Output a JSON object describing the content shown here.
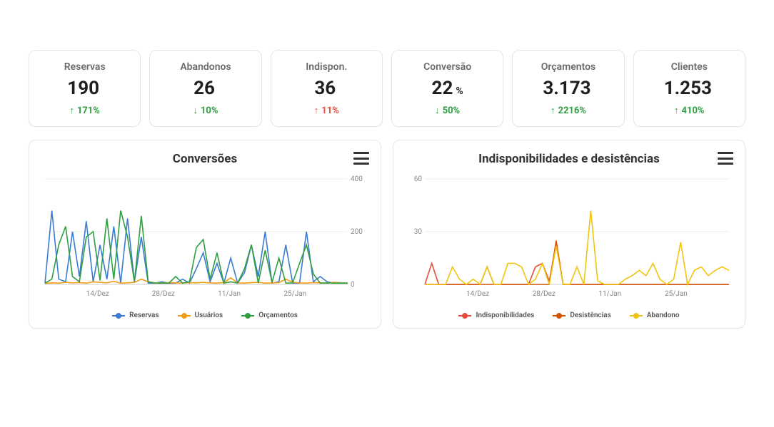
{
  "kpis": [
    {
      "title": "Reservas",
      "value": "190",
      "suffix": "",
      "delta": "171%",
      "direction": "up",
      "deltaColor": "green"
    },
    {
      "title": "Abandonos",
      "value": "26",
      "suffix": "",
      "delta": "10%",
      "direction": "down",
      "deltaColor": "green"
    },
    {
      "title": "Indispon.",
      "value": "36",
      "suffix": "",
      "delta": "11%",
      "direction": "up",
      "deltaColor": "red"
    },
    {
      "title": "Conversão",
      "value": "22",
      "suffix": "%",
      "delta": "50%",
      "direction": "down",
      "deltaColor": "green"
    },
    {
      "title": "Orçamentos",
      "value": "3.173",
      "suffix": "",
      "delta": "2216%",
      "direction": "up",
      "deltaColor": "green"
    },
    {
      "title": "Clientes",
      "value": "1.253",
      "suffix": "",
      "delta": "410%",
      "direction": "up",
      "deltaColor": "green"
    }
  ],
  "charts": {
    "left": {
      "title": "Conversões",
      "type": "line",
      "x_labels": [
        "14/Dez",
        "28/Dez",
        "11/Jan",
        "25/Jan"
      ],
      "y_ticks": [
        0,
        200,
        400
      ],
      "ylim": [
        0,
        400
      ],
      "background_color": "#ffffff",
      "grid_color": "#eeeeee",
      "axis_font_size": 10,
      "y_axis_side": "right",
      "series": [
        {
          "name": "Reservas",
          "color": "#3a7bd5",
          "values": [
            5,
            280,
            20,
            10,
            200,
            30,
            240,
            10,
            150,
            20,
            220,
            5,
            250,
            10,
            180,
            5,
            5,
            10,
            5,
            5,
            20,
            5,
            60,
            120,
            10,
            80,
            5,
            100,
            5,
            45,
            150,
            30,
            200,
            5,
            10,
            150,
            5,
            5,
            200,
            10,
            30,
            10,
            5,
            5,
            5
          ]
        },
        {
          "name": "Usuários",
          "color": "#f39c12",
          "values": [
            4,
            6,
            5,
            8,
            6,
            7,
            5,
            10,
            8,
            6,
            12,
            5,
            6,
            8,
            20,
            10,
            6,
            5,
            7,
            6,
            5,
            7,
            6,
            8,
            6,
            5,
            7,
            25,
            6,
            5,
            7,
            8,
            5,
            6,
            7,
            20,
            8,
            6,
            5,
            7,
            6,
            5,
            8,
            6,
            5
          ]
        },
        {
          "name": "Orçamentos",
          "color": "#2e9e3f",
          "values": [
            5,
            20,
            150,
            220,
            30,
            10,
            180,
            200,
            15,
            250,
            20,
            280,
            180,
            10,
            260,
            10,
            5,
            5,
            5,
            30,
            5,
            10,
            140,
            170,
            20,
            120,
            5,
            10,
            5,
            60,
            150,
            5,
            130,
            8,
            100,
            5,
            6,
            80,
            150,
            40,
            5,
            6,
            5,
            5,
            5
          ]
        }
      ],
      "legend": [
        "Reservas",
        "Usuários",
        "Orçamentos"
      ]
    },
    "right": {
      "title": "Indisponibilidades e desistências",
      "type": "line",
      "x_labels": [
        "14/Dez",
        "28/Dez",
        "11/Jan",
        "25/Jan"
      ],
      "y_ticks": [
        30,
        60
      ],
      "ylim": [
        0,
        60
      ],
      "background_color": "#ffffff",
      "grid_color": "#eeeeee",
      "axis_font_size": 10,
      "y_axis_side": "left",
      "series": [
        {
          "name": "Indisponibilidades",
          "color": "#e74c3c",
          "values": [
            0,
            12,
            0,
            0,
            0,
            0,
            0,
            0,
            0,
            10,
            0,
            0,
            0,
            0,
            0,
            0,
            10,
            12,
            2,
            23,
            0,
            0,
            0,
            0,
            0,
            0,
            0,
            0,
            0,
            0,
            0,
            0,
            0,
            0,
            0,
            0,
            0,
            0,
            0,
            0,
            0,
            0,
            0,
            0,
            0
          ]
        },
        {
          "name": "Desistências",
          "color": "#d35400",
          "values": [
            0,
            0,
            0,
            0,
            0,
            0,
            0,
            0,
            0,
            0,
            0,
            0,
            0,
            0,
            0,
            0,
            0,
            0,
            0,
            25,
            0,
            0,
            0,
            0,
            0,
            0,
            0,
            0,
            0,
            0,
            0,
            0,
            0,
            0,
            0,
            0,
            0,
            0,
            0,
            0,
            0,
            0,
            0,
            0,
            0
          ]
        },
        {
          "name": "Abandono",
          "color": "#f1c40f",
          "values": [
            0,
            0,
            0,
            0,
            10,
            3,
            0,
            3,
            0,
            10,
            0,
            0,
            12,
            12,
            10,
            0,
            3,
            12,
            0,
            22,
            0,
            0,
            10,
            0,
            42,
            2,
            0,
            0,
            0,
            3,
            5,
            8,
            5,
            12,
            3,
            0,
            3,
            24,
            0,
            8,
            10,
            5,
            8,
            10,
            8
          ]
        }
      ],
      "legend": [
        "Indisponibilidades",
        "Desistências",
        "Abandono"
      ]
    }
  }
}
